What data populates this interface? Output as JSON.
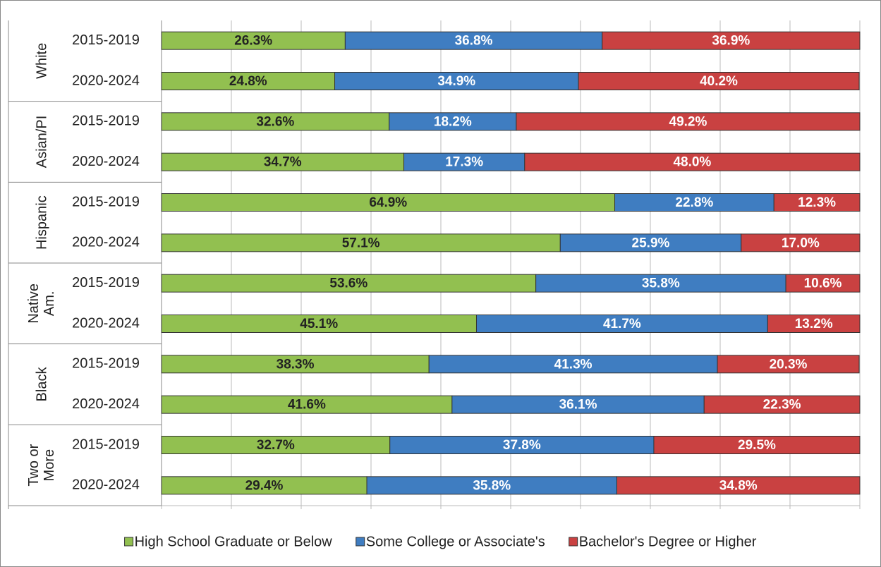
{
  "chart_data": {
    "type": "stacked-bar-horizontal",
    "groups": [
      {
        "name": "White",
        "size": 2
      },
      {
        "name": "Asian/PI",
        "size": 2
      },
      {
        "name": "Hispanic",
        "size": 2
      },
      {
        "name": "Native Am.",
        "size": 2
      },
      {
        "name": "Black",
        "size": 2
      },
      {
        "name": "Two or More",
        "size": 2
      }
    ],
    "categories": [
      "2015-2019",
      "2020-2024",
      "2015-2019",
      "2020-2024",
      "2015-2019",
      "2020-2024",
      "2015-2019",
      "2020-2024",
      "2015-2019",
      "2020-2024",
      "2015-2019",
      "2020-2024"
    ],
    "series": [
      {
        "name": "High School Graduate or Below",
        "color": "#92c050",
        "label_color": "#222222",
        "values": [
          26.3,
          24.8,
          32.6,
          34.7,
          64.9,
          57.1,
          53.6,
          45.1,
          38.3,
          41.6,
          32.7,
          29.4
        ],
        "value_labels": [
          "26.3%",
          "24.8%",
          "32.6%",
          "34.7%",
          "64.9%",
          "57.1%",
          "53.6%",
          "45.1%",
          "38.3%",
          "41.6%",
          "32.7%",
          "29.4%"
        ]
      },
      {
        "name": "Some College or Associate's",
        "color": "#3f7dc1",
        "label_color": "#ffffff",
        "values": [
          36.8,
          34.9,
          18.2,
          17.3,
          22.8,
          25.9,
          35.8,
          41.7,
          41.3,
          36.1,
          37.8,
          35.8
        ],
        "value_labels": [
          "36.8%",
          "34.9%",
          "18.2%",
          "17.3%",
          "22.8%",
          "25.9%",
          "35.8%",
          "41.7%",
          "41.3%",
          "36.1%",
          "37.8%",
          "35.8%"
        ]
      },
      {
        "name": "Bachelor's Degree or Higher",
        "color": "#c94141",
        "label_color": "#ffffff",
        "values": [
          36.9,
          40.2,
          49.2,
          48.0,
          12.3,
          17.0,
          10.6,
          13.2,
          20.3,
          22.3,
          29.5,
          34.8
        ],
        "value_labels": [
          "36.9%",
          "40.2%",
          "49.2%",
          "48.0%",
          "12.3%",
          "17.0%",
          "10.6%",
          "13.2%",
          "20.3%",
          "22.3%",
          "29.5%",
          "34.8%"
        ]
      }
    ],
    "xlim": [
      0,
      100
    ],
    "xticks": [
      0,
      10,
      20,
      30,
      40,
      50,
      60,
      70,
      80,
      90,
      100
    ],
    "grid": true,
    "legend": "bottom"
  }
}
